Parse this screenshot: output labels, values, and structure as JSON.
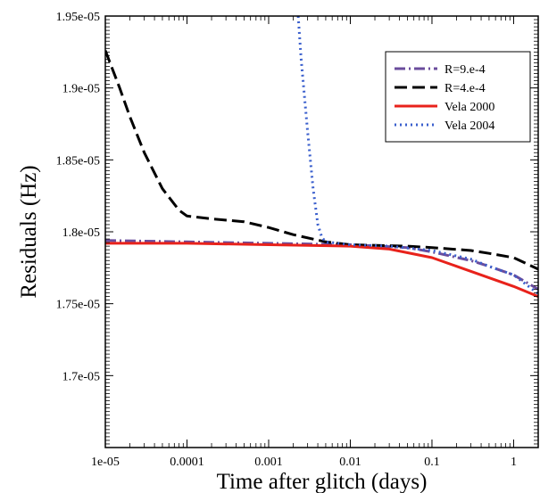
{
  "chart_data": {
    "type": "line",
    "title": "",
    "xlabel": "Time after glitch (days)",
    "ylabel": "Residuals (Hz)",
    "xscale": "log",
    "xlim": [
      1e-05,
      2
    ],
    "ylim": [
      1.65e-05,
      1.95e-05
    ],
    "xticks": [
      1e-05,
      0.0001,
      0.001,
      0.01,
      0.1,
      1
    ],
    "xtick_labels": [
      "1e-05",
      "0.0001",
      "0.001",
      "0.01",
      "0.1",
      "1"
    ],
    "yticks": [
      1.7e-05,
      1.75e-05,
      1.8e-05,
      1.85e-05,
      1.9e-05,
      1.95e-05
    ],
    "ytick_labels": [
      "1.7e-05",
      "1.75e-05",
      "1.8e-05",
      "1.85e-05",
      "1.9e-05",
      "1.95e-05"
    ],
    "grid": false,
    "legend_position": "top-right",
    "series": [
      {
        "name": "R=9.e-4",
        "color": "#6a4c9c",
        "dash": "dash-dot",
        "x": [
          1e-05,
          0.0001,
          0.001,
          0.01,
          0.05,
          0.1,
          0.3,
          0.5,
          1,
          2
        ],
        "y": [
          1.794e-05,
          1.793e-05,
          1.792e-05,
          1.791e-05,
          1.789e-05,
          1.786e-05,
          1.78e-05,
          1.776e-05,
          1.77e-05,
          1.76e-05
        ]
      },
      {
        "name": "R=4.e-4",
        "color": "#000000",
        "dash": "dashed",
        "x": [
          1e-05,
          1.5e-05,
          2e-05,
          3e-05,
          5e-05,
          8e-05,
          0.0001,
          0.0002,
          0.0005,
          0.001,
          0.002,
          0.005,
          0.01,
          0.05,
          0.1,
          0.3,
          0.5,
          1,
          2
        ],
        "y": [
          1.926e-05,
          1.9e-05,
          1.88e-05,
          1.855e-05,
          1.83e-05,
          1.815e-05,
          1.811e-05,
          1.809e-05,
          1.807e-05,
          1.803e-05,
          1.798e-05,
          1.793e-05,
          1.791e-05,
          1.79e-05,
          1.789e-05,
          1.787e-05,
          1.785e-05,
          1.782e-05,
          1.774e-05
        ]
      },
      {
        "name": "Vela 2000",
        "color": "#e8221b",
        "dash": "solid",
        "x": [
          1e-05,
          0.0001,
          0.001,
          0.01,
          0.03,
          0.1,
          0.2,
          0.5,
          1,
          2
        ],
        "y": [
          1.792e-05,
          1.792e-05,
          1.791e-05,
          1.79e-05,
          1.788e-05,
          1.782e-05,
          1.776e-05,
          1.768e-05,
          1.762e-05,
          1.755e-05
        ]
      },
      {
        "name": "Vela 2004",
        "color": "#3a5fcd",
        "dash": "dotted",
        "x": [
          0.0023,
          0.0025,
          0.003,
          0.0035,
          0.004,
          0.0045,
          0.005,
          0.007,
          0.01,
          0.03,
          0.1,
          0.3,
          0.5,
          1,
          2
        ],
        "y": [
          1.95e-05,
          1.92e-05,
          1.87e-05,
          1.83e-05,
          1.805e-05,
          1.796e-05,
          1.793e-05,
          1.792e-05,
          1.791e-05,
          1.79e-05,
          1.787e-05,
          1.781e-05,
          1.776e-05,
          1.77e-05,
          1.757e-05
        ]
      }
    ]
  }
}
